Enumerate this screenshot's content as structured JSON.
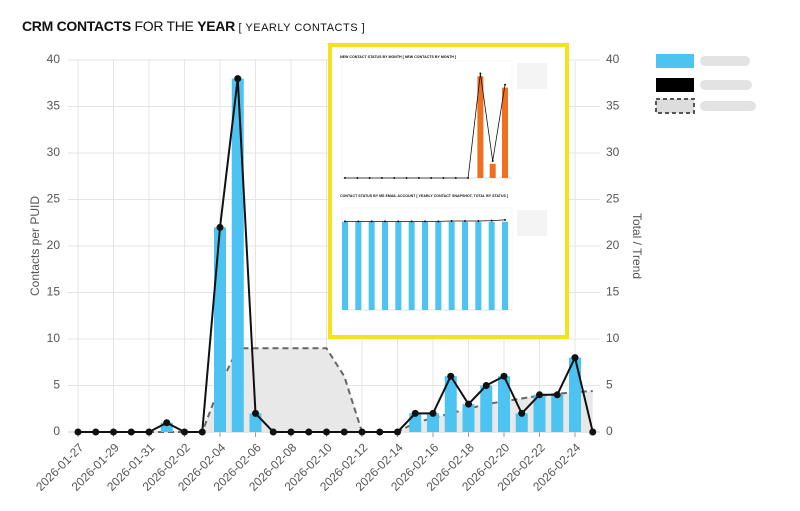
{
  "chart_data": {
    "type": "bar",
    "title_parts": [
      "CRM CONTACTS",
      "FOR THE",
      "YEAR",
      "[ YEARLY CONTACTS ]"
    ],
    "y_label": "Contacts per PUID",
    "y2_label": "Total / Trend",
    "categories": [
      "2026-01-27",
      null,
      "2026-01-29",
      null,
      "2026-01-31",
      null,
      "2026-02-02",
      null,
      "2026-02-04",
      null,
      "2026-02-06",
      null,
      "2026-02-08",
      null,
      "2026-02-10",
      null,
      "2026-02-12",
      null,
      "2026-02-14",
      null,
      "2026-02-16",
      null,
      "2026-02-18",
      null,
      "2026-02-20",
      null,
      "2026-02-22",
      null,
      "2026-02-24",
      null
    ],
    "ylim": [
      0,
      40
    ],
    "yticks": [
      0,
      5,
      10,
      15,
      20,
      25,
      30,
      35,
      40
    ],
    "y2lim": [
      0,
      40
    ],
    "y2ticks": [
      0,
      5,
      10,
      15,
      20,
      25,
      30,
      35,
      40
    ],
    "grid": true,
    "series": [
      {
        "type": "bar",
        "color": "#4cc3f0",
        "values": [
          0,
          0,
          0,
          0,
          0,
          1,
          0,
          0,
          22,
          38,
          2,
          0,
          0,
          0,
          0,
          0,
          0,
          0,
          0,
          2,
          2,
          6,
          3,
          5,
          6,
          2,
          4,
          4,
          8,
          0
        ]
      },
      {
        "type": "line",
        "axis": "y2",
        "color": "#111111",
        "values": [
          0,
          0,
          0,
          0,
          0,
          1,
          0,
          0,
          22,
          38,
          2,
          0,
          0,
          0,
          0,
          0,
          0,
          0,
          0,
          2,
          2,
          6,
          3,
          5,
          6,
          2,
          4,
          4,
          8,
          0
        ]
      },
      {
        "type": "area",
        "axis": "y2",
        "color": "#666666",
        "values": [
          0,
          0,
          0,
          0,
          0,
          0,
          0,
          0,
          5,
          9,
          9,
          9,
          9,
          9,
          9,
          6,
          0,
          0,
          0,
          1,
          1.5,
          2,
          2.5,
          3,
          3.3,
          3.6,
          3.9,
          4.1,
          4.3,
          4.4
        ]
      }
    ],
    "insets": [
      {
        "title": "NEW CONTACT STATUS BY MONTH [ NEW CONTACTS BY MONTH ]",
        "ylim": [
          0,
          40
        ],
        "series": [
          {
            "type": "bar",
            "color": "#f07020",
            "values": [
              0,
              0,
              0,
              0,
              0,
              0,
              0,
              0,
              0,
              0,
              0,
              36,
              5,
              32
            ]
          },
          {
            "type": "line",
            "color": "#111111",
            "values": [
              0,
              0,
              0,
              0,
              0,
              0,
              0,
              0,
              0,
              0,
              0,
              37,
              6,
              33
            ]
          }
        ]
      },
      {
        "title": "CONTACT STATUS BY MS EMAIL ACCOUNT [ YEARLY CONTACT SNAPSHOT, TOTAL BY STATUS ]",
        "ylim": [
          0,
          25
        ],
        "series": [
          {
            "type": "bar",
            "color": "#4cc3f0",
            "values": [
              22.5,
              22.5,
              22.5,
              22.5,
              22.5,
              22.5,
              22.5,
              22.5,
              22.5,
              22.5,
              22.5,
              22.5,
              22.5
            ]
          },
          {
            "type": "line",
            "color": "#111111",
            "values": [
              22.6,
              22.6,
              22.6,
              22.6,
              22.6,
              22.6,
              22.6,
              22.6,
              22.7,
              22.7,
              22.7,
              22.8,
              23
            ]
          }
        ]
      }
    ]
  }
}
